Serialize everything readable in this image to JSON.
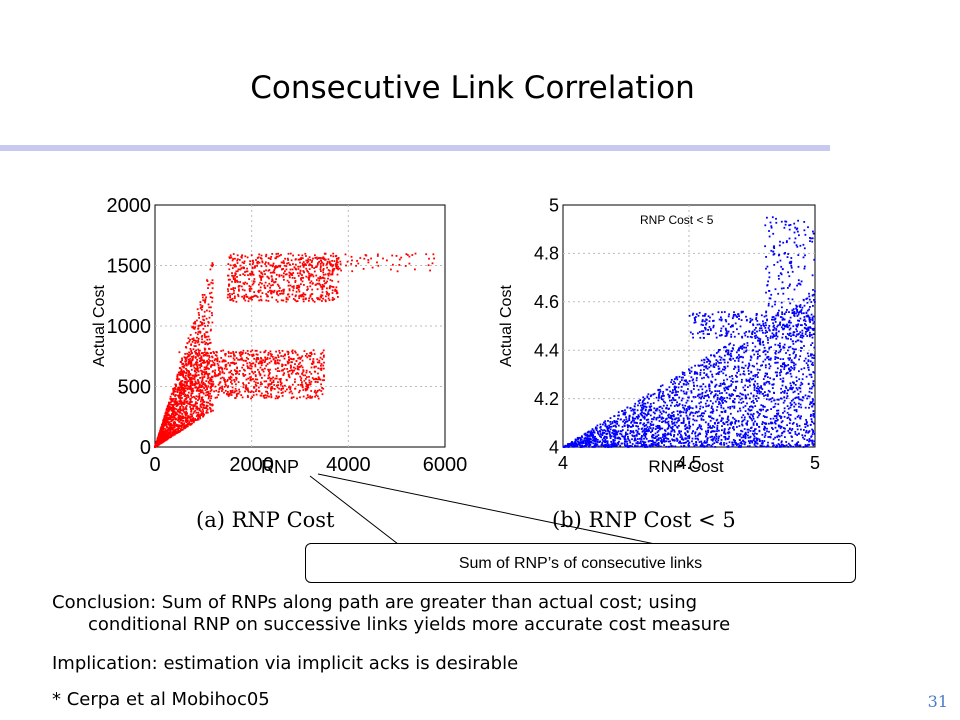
{
  "slide": {
    "title": "Consecutive Link Correlation",
    "callout": "Sum of RNP’s of consecutive links",
    "conclusion_line1": "Conclusion: Sum of RNPs along path are greater than actual cost; using",
    "conclusion_line2": "conditional RNP on successive links yields more accurate cost measure",
    "implication": "Implication: estimation via implicit acks is desirable",
    "citation": "* Cerpa et al Mobihoc05",
    "page_number": "31"
  },
  "colors": {
    "rule": "#c8c9f0",
    "series_a": "#ff0000",
    "series_b": "#0000ff",
    "page_number": "#4a7cc7"
  },
  "chart_data": [
    {
      "type": "scatter",
      "caption": "(a) RNP Cost",
      "xlabel": "RNP",
      "ylabel": "Actual Cost",
      "xlim": [
        0,
        6000
      ],
      "ylim": [
        0,
        2000
      ],
      "xticks": [
        "0",
        "2000",
        "4000",
        "6000"
      ],
      "yticks": [
        "0",
        "500",
        "1000",
        "1500",
        "2000"
      ],
      "grid": true,
      "color": "#ff0000",
      "clusters": [
        {
          "x_range": [
            0,
            1200
          ],
          "y_over_x": [
            0.25,
            1.3
          ],
          "count": 1600
        },
        {
          "x_range": [
            500,
            3500
          ],
          "y_range": [
            400,
            800
          ],
          "count": 900
        },
        {
          "x_range": [
            1500,
            3800
          ],
          "y_range": [
            1200,
            1600
          ],
          "count": 650
        },
        {
          "x_range": [
            3000,
            5800
          ],
          "y_range": [
            1450,
            1600
          ],
          "count": 80
        }
      ]
    },
    {
      "type": "scatter",
      "caption": "(b) RNP Cost < 5",
      "annotation": "RNP Cost < 5",
      "xlabel": "RNP Cost",
      "ylabel": "Actual Cost",
      "xlim": [
        4,
        5
      ],
      "ylim": [
        4,
        5
      ],
      "xticks": [
        "4",
        "4.5",
        "5"
      ],
      "yticks": [
        "4",
        "4.2",
        "4.4",
        "4.6",
        "4.8",
        "5"
      ],
      "grid": true,
      "color": "#0000ff",
      "clusters": [
        {
          "x_range": [
            4,
            5
          ],
          "y_over_x": [
            0,
            0.65
          ],
          "count": 2600
        },
        {
          "x_range": [
            4.5,
            5
          ],
          "y_range": [
            4.45,
            4.56
          ],
          "count": 250
        },
        {
          "x_range": [
            4.8,
            5
          ],
          "y_range": [
            4.55,
            4.95
          ],
          "count": 150
        }
      ]
    }
  ]
}
